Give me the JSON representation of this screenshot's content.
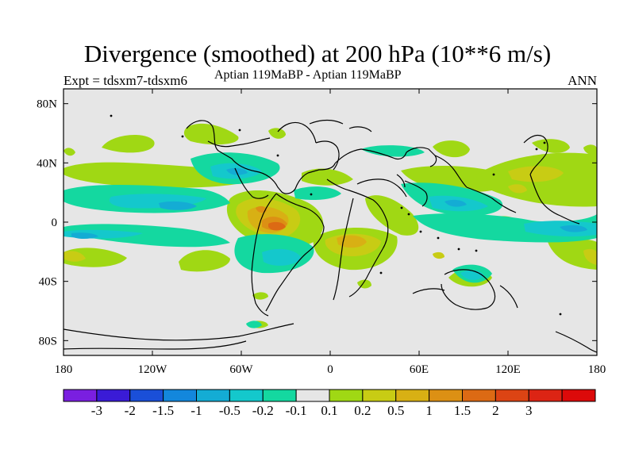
{
  "title": "Divergence (smoothed) at 200 hPa (10**6 m/s)",
  "left_label": "Expt = tdsxm7-tdsxm6",
  "center_label": "Aptian   119MaBP - Aptian   119MaBP",
  "right_label": "ANN",
  "map": {
    "projection": "cylindrical equidistant",
    "lon_range": [
      -180,
      180
    ],
    "lat_range": [
      -90,
      90
    ],
    "lon_ticks": [
      {
        "value": -180,
        "label": "180"
      },
      {
        "value": -120,
        "label": "120W"
      },
      {
        "value": -60,
        "label": "60W"
      },
      {
        "value": 0,
        "label": "0"
      },
      {
        "value": 60,
        "label": "60E"
      },
      {
        "value": 120,
        "label": "120E"
      },
      {
        "value": 180,
        "label": "180"
      }
    ],
    "lat_ticks": [
      {
        "value": 80,
        "label": "80N"
      },
      {
        "value": 40,
        "label": "40N"
      },
      {
        "value": 0,
        "label": "0"
      },
      {
        "value": -40,
        "label": "40S"
      },
      {
        "value": -80,
        "label": "80S"
      }
    ],
    "background_color": "#e6e6e6"
  },
  "colorbar": {
    "colors": [
      "#7a1fe0",
      "#3a1bd6",
      "#1a4fd8",
      "#1387dc",
      "#14acd4",
      "#14c8cc",
      "#14d8a0",
      "#e6e6e6",
      "#a0d814",
      "#c8cc14",
      "#d8b014",
      "#dc9014",
      "#dc6a14",
      "#dc4414",
      "#dc2414",
      "#dc0a0a"
    ],
    "labels": [
      "-3",
      "-2",
      "-1.5",
      "-1",
      "-0.5",
      "-0.2",
      "-0.1",
      "0.1",
      "0.2",
      "0.5",
      "1",
      "1.5",
      "2",
      "3"
    ]
  },
  "chart_data": {
    "type": "filled-contour-map",
    "variable": "Divergence (smoothed) at 200 hPa",
    "units": "10**6 m/s",
    "contour_levels": [
      -3,
      -2,
      -1.5,
      -1,
      -0.5,
      -0.2,
      -0.1,
      0.1,
      0.2,
      0.5,
      1,
      1.5,
      2,
      3
    ],
    "season": "ANN",
    "features": [
      {
        "name": "strong divergence maximum",
        "lon": -37,
        "lat": -2,
        "value": 1.5
      },
      {
        "name": "divergence band",
        "lon": -50,
        "lat": 2,
        "value": 0.5
      },
      {
        "name": "divergence region",
        "lon": 10,
        "lat": -10,
        "value": 0.5
      },
      {
        "name": "divergence region",
        "lon": 125,
        "lat": 22,
        "value": 0.3
      },
      {
        "name": "convergence band",
        "lon": -125,
        "lat": 10,
        "value": -0.5
      },
      {
        "name": "convergence band",
        "lon": 120,
        "lat": 2,
        "value": -0.5
      },
      {
        "name": "convergence region",
        "lon": 80,
        "lat": -42,
        "value": -0.2
      }
    ]
  }
}
